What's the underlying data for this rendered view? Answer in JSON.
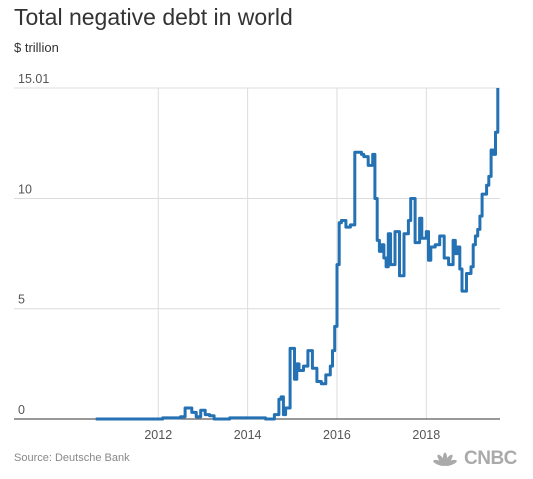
{
  "title": "Total negative debt in world",
  "unit_label": "$ trillion",
  "source": "Source: Deutsche Bank",
  "logo_text": "CNBC",
  "chart_data": {
    "type": "line",
    "title": "Total negative debt in world",
    "ylabel": "$ trillion",
    "xlabel": "",
    "x_ticks": [
      "2012",
      "2014",
      "2016",
      "2018"
    ],
    "x_tick_values": [
      2012,
      2014,
      2016,
      2018
    ],
    "y_ticks": [
      "0",
      "5",
      "10",
      "15.01"
    ],
    "y_tick_values": [
      0,
      5,
      10,
      15.01
    ],
    "xlim": [
      2009.8,
      2019.65
    ],
    "ylim": [
      0,
      15.01
    ],
    "grid": "vertical and horizontal",
    "color": "#2471b3",
    "series": [
      {
        "x": [
          2010.6,
          2011.6,
          2012.1,
          2012.5,
          2012.6,
          2012.75,
          2012.85,
          2012.95,
          2013.05,
          2013.15,
          2013.25,
          2013.4,
          2013.6,
          2014.4,
          2014.6,
          2014.7,
          2014.75,
          2014.8,
          2014.85,
          2014.95,
          2015.05,
          2015.1,
          2015.15,
          2015.25,
          2015.35,
          2015.45,
          2015.55,
          2015.65,
          2015.75,
          2015.85,
          2015.9,
          2015.95,
          2016.0,
          2016.05,
          2016.1,
          2016.2,
          2016.3,
          2016.4,
          2016.45,
          2016.55,
          2016.6,
          2016.7,
          2016.8,
          2016.85,
          2016.9,
          2016.95,
          2017.0,
          2017.05,
          2017.1,
          2017.15,
          2017.2,
          2017.3,
          2017.4,
          2017.5,
          2017.6,
          2017.65,
          2017.75,
          2017.85,
          2017.9,
          2018.0,
          2018.05,
          2018.1,
          2018.2,
          2018.3,
          2018.4,
          2018.5,
          2018.6,
          2018.65,
          2018.7,
          2018.75,
          2018.8,
          2018.9,
          2019.0,
          2019.05,
          2019.1,
          2019.15,
          2019.2,
          2019.25,
          2019.3,
          2019.35,
          2019.4,
          2019.45,
          2019.5,
          2019.55,
          2019.6
        ],
        "y": [
          0.0,
          0.0,
          0.05,
          0.1,
          0.5,
          0.3,
          0.1,
          0.4,
          0.2,
          0.15,
          0.0,
          0.0,
          0.05,
          0.0,
          0.2,
          0.9,
          1.0,
          0.2,
          0.5,
          3.2,
          1.8,
          2.5,
          2.2,
          2.4,
          3.1,
          2.3,
          1.7,
          1.6,
          2.0,
          2.4,
          3.1,
          4.2,
          7.0,
          8.9,
          9.0,
          8.7,
          8.8,
          12.1,
          12.1,
          12.0,
          11.9,
          11.5,
          12.0,
          10.0,
          8.1,
          7.6,
          7.9,
          7.3,
          6.9,
          8.4,
          7.0,
          8.5,
          6.5,
          8.4,
          9.0,
          10.0,
          8.0,
          9.1,
          8.2,
          8.5,
          7.2,
          7.8,
          7.9,
          8.3,
          7.3,
          7.0,
          8.1,
          7.5,
          7.8,
          6.8,
          5.8,
          6.6,
          6.9,
          7.9,
          8.3,
          8.6,
          9.2,
          10.2,
          10.2,
          10.6,
          11.0,
          12.2,
          12.0,
          13.0,
          15.01
        ]
      }
    ]
  }
}
